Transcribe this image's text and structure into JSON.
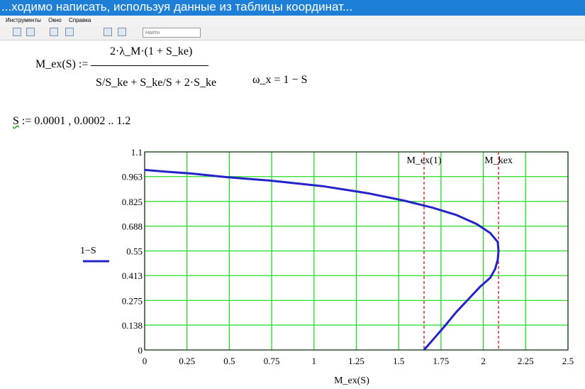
{
  "window": {
    "title": "...ходимо написать, используя данные из таблицы координат...",
    "menu": [
      "Инструменты",
      "Окно",
      "Справка"
    ],
    "search_placeholder": "Найти"
  },
  "formulas": {
    "m_lhs": "M_ex(S) :=",
    "m_num": "2·λ_M·(1 + S_ke)",
    "m_den": "S/S_ke + S_ke/S + 2·S_ke",
    "omega": "ω_x = 1 − S",
    "range_var": "S",
    "range_expr": ":= 0.0001 , 0.0002 .. 1.2"
  },
  "chart_data": {
    "type": "line",
    "xlabel": "M_ex(S)",
    "ylabel": "1−S",
    "xlim": [
      0,
      2.5
    ],
    "ylim": [
      0,
      1.1
    ],
    "x_ticks": [
      "0",
      "0.25",
      "0.5",
      "0.75",
      "1",
      "1.25",
      "1.5",
      "1.75",
      "2",
      "2.25",
      "2.5"
    ],
    "y_ticks": [
      "0",
      "0.138",
      "0.275",
      "0.413",
      "0.55",
      "0.688",
      "0.825",
      "0.963",
      "1.1"
    ],
    "grid": true,
    "series": [
      {
        "name": "1−S",
        "color": "#2323c8",
        "x": [
          0.0,
          0.127,
          0.273,
          0.482,
          0.75,
          1.05,
          1.32,
          1.53,
          1.7,
          1.84,
          1.96,
          2.04,
          2.085,
          2.09,
          2.085,
          2.07,
          2.04,
          1.98,
          1.91,
          1.84,
          1.77,
          1.705,
          1.65
        ],
        "y": [
          1.0,
          0.99,
          0.98,
          0.96,
          0.94,
          0.91,
          0.87,
          0.83,
          0.79,
          0.75,
          0.7,
          0.65,
          0.6,
          0.55,
          0.5,
          0.45,
          0.4,
          0.35,
          0.28,
          0.21,
          0.13,
          0.06,
          0.0
        ]
      }
    ],
    "markers": [
      {
        "label": "M_ex(1)",
        "x": 1.65,
        "color": "#d10000"
      },
      {
        "label": "M_kex",
        "x": 2.09,
        "color": "#d10000"
      }
    ]
  }
}
